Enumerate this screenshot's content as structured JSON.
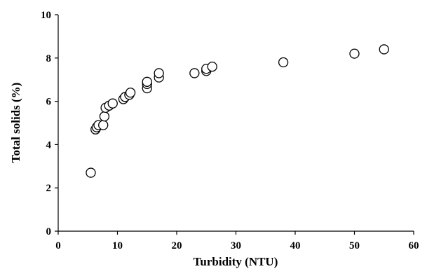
{
  "chart_data": {
    "type": "scatter",
    "xlabel": "Turbidity (NTU)",
    "ylabel": "Total solids (%)",
    "xlim": [
      0,
      60
    ],
    "ylim": [
      0,
      10
    ],
    "xticks": [
      "0",
      "10",
      "20",
      "30",
      "40",
      "50",
      "60"
    ],
    "yticks": [
      "0",
      "2",
      "4",
      "6",
      "8",
      "10"
    ],
    "grid": false,
    "marker": "open-circle",
    "series": [
      {
        "points": [
          {
            "x": 5.5,
            "y": 2.7
          },
          {
            "x": 6.3,
            "y": 4.7
          },
          {
            "x": 6.5,
            "y": 4.8
          },
          {
            "x": 6.8,
            "y": 4.9
          },
          {
            "x": 7.6,
            "y": 4.9
          },
          {
            "x": 7.8,
            "y": 5.3
          },
          {
            "x": 8.0,
            "y": 5.7
          },
          {
            "x": 8.6,
            "y": 5.8
          },
          {
            "x": 9.2,
            "y": 5.9
          },
          {
            "x": 11.0,
            "y": 6.1
          },
          {
            "x": 11.3,
            "y": 6.2
          },
          {
            "x": 12.0,
            "y": 6.3
          },
          {
            "x": 12.2,
            "y": 6.4
          },
          {
            "x": 15.0,
            "y": 6.6
          },
          {
            "x": 15.0,
            "y": 6.8
          },
          {
            "x": 15.0,
            "y": 6.9
          },
          {
            "x": 17.0,
            "y": 7.1
          },
          {
            "x": 17.0,
            "y": 7.3
          },
          {
            "x": 23.0,
            "y": 7.3
          },
          {
            "x": 25.0,
            "y": 7.4
          },
          {
            "x": 25.0,
            "y": 7.5
          },
          {
            "x": 26.0,
            "y": 7.6
          },
          {
            "x": 38.0,
            "y": 7.8
          },
          {
            "x": 50.0,
            "y": 8.2
          },
          {
            "x": 55.0,
            "y": 8.4
          }
        ]
      }
    ]
  }
}
